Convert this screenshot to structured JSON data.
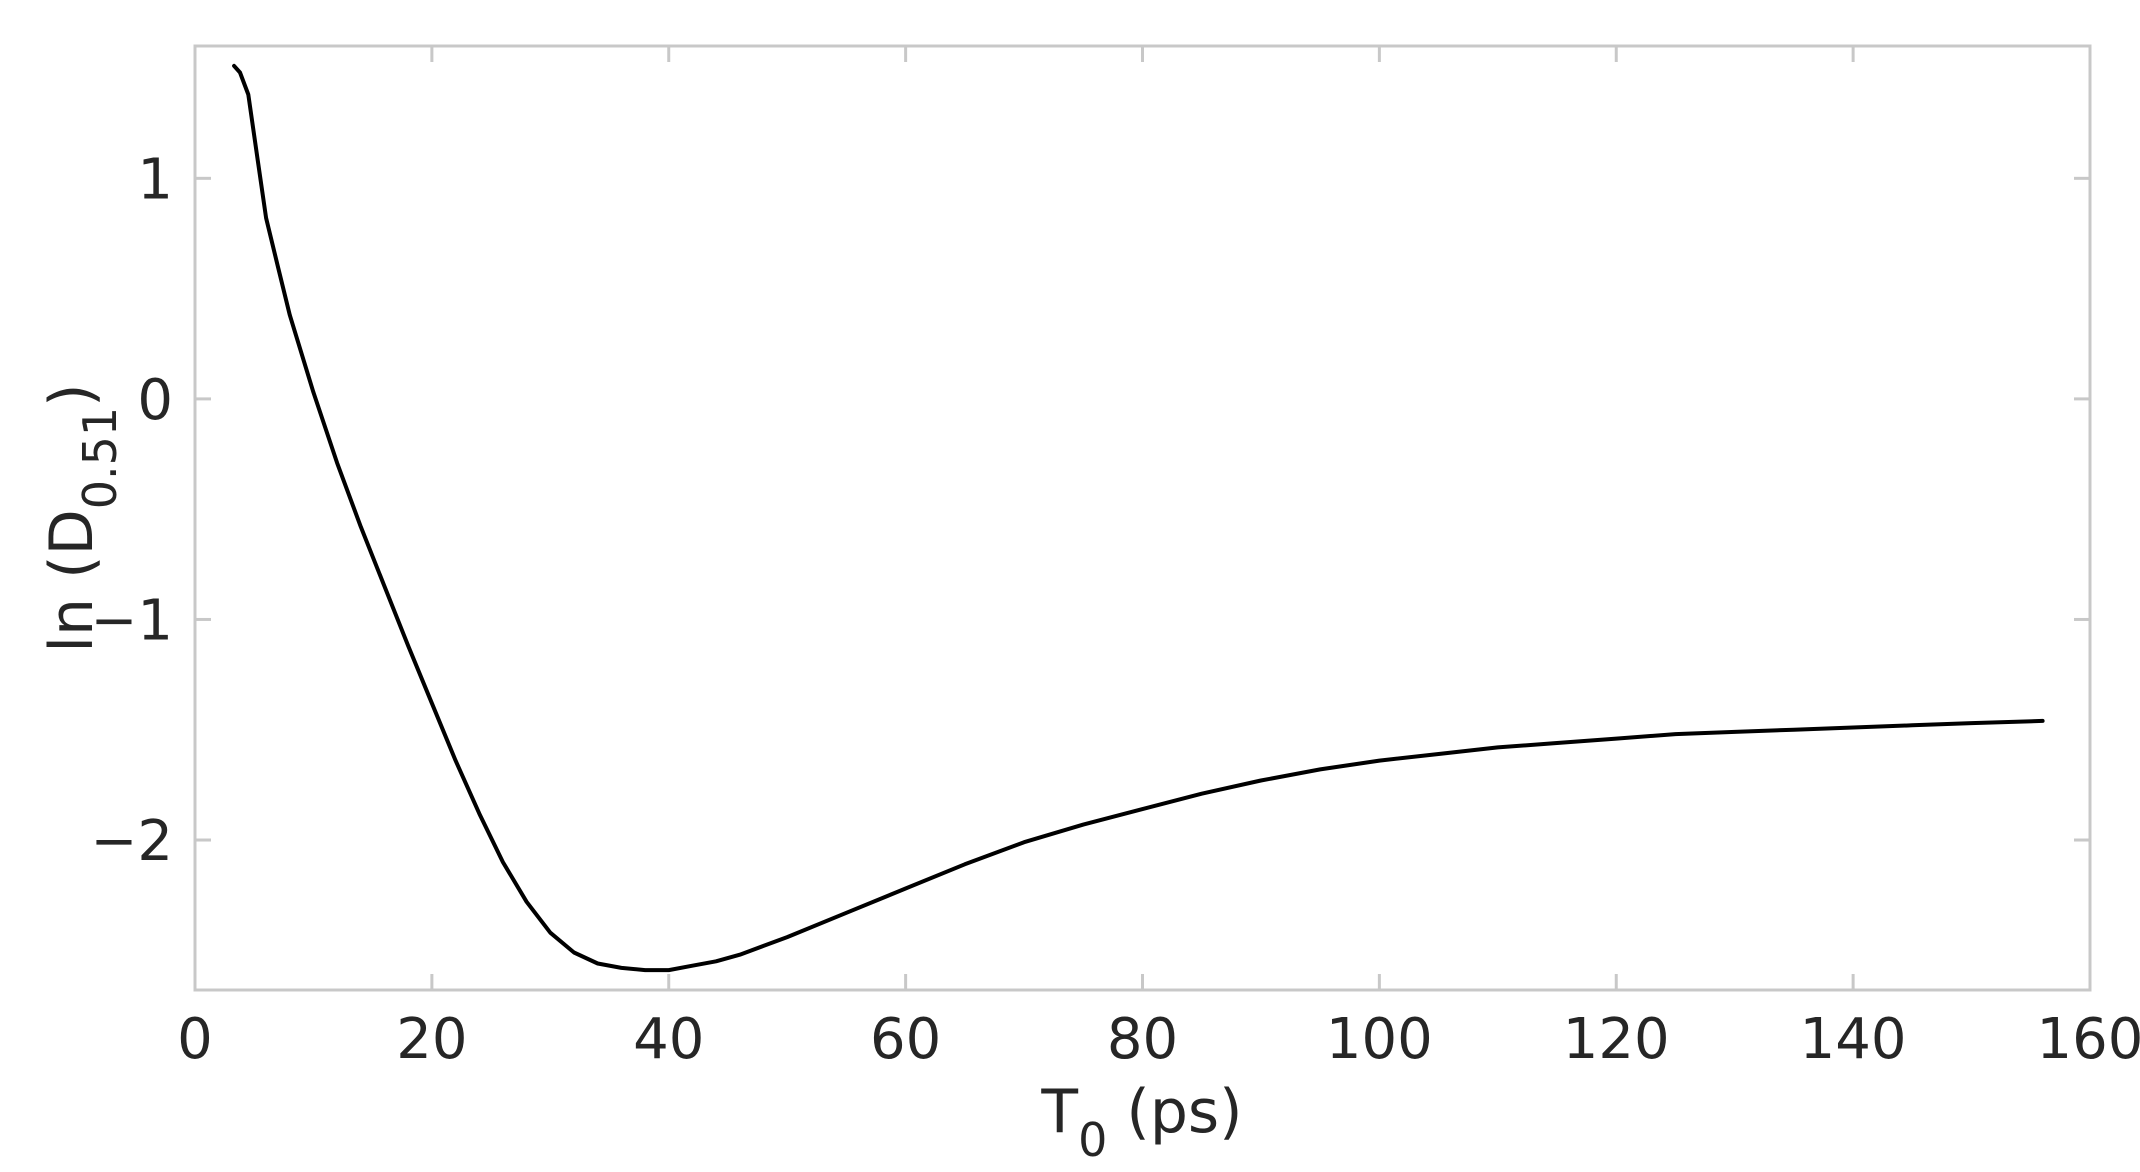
{
  "chart_data": {
    "type": "line",
    "title": "",
    "xlabel": {
      "base": "T",
      "subscript": "0",
      "suffix": " (ps)"
    },
    "ylabel": {
      "prefix": "ln (D",
      "subscript": "0.51",
      "suffix": ")"
    },
    "xlim": [
      0,
      160
    ],
    "ylim": [
      -2.68,
      1.6
    ],
    "xticks": [
      0,
      20,
      40,
      60,
      80,
      100,
      120,
      140,
      160
    ],
    "xtick_labels": [
      "0",
      "20",
      "40",
      "60",
      "80",
      "100",
      "120",
      "140",
      "160"
    ],
    "yticks": [
      1,
      0,
      -1,
      -2
    ],
    "ytick_labels": [
      "1",
      "0",
      "−1",
      "−2"
    ],
    "grid": false,
    "line_color": "#000000",
    "axis_color": "#c8c8c8",
    "series": [
      {
        "x": [
          3.3,
          3.8,
          4.5,
          5.3,
          6.0,
          7.0,
          8.0,
          10,
          12,
          14,
          16,
          18,
          20,
          22,
          24,
          26,
          28,
          30,
          32,
          34,
          36,
          38,
          40,
          42,
          44,
          46,
          48,
          50,
          55,
          60,
          65,
          70,
          75,
          80,
          85,
          90,
          95,
          100,
          105,
          110,
          115,
          120,
          125,
          130,
          135,
          140,
          145,
          150,
          156
        ],
        "y": [
          1.51,
          1.48,
          1.38,
          1.08,
          0.82,
          0.6,
          0.38,
          0.03,
          -0.29,
          -0.58,
          -0.85,
          -1.12,
          -1.38,
          -1.64,
          -1.88,
          -2.1,
          -2.28,
          -2.42,
          -2.51,
          -2.56,
          -2.58,
          -2.59,
          -2.59,
          -2.57,
          -2.55,
          -2.52,
          -2.48,
          -2.44,
          -2.33,
          -2.22,
          -2.11,
          -2.01,
          -1.93,
          -1.86,
          -1.79,
          -1.73,
          -1.68,
          -1.64,
          -1.61,
          -1.58,
          -1.56,
          -1.54,
          -1.52,
          -1.51,
          -1.5,
          -1.49,
          -1.48,
          -1.47,
          -1.46
        ]
      }
    ]
  }
}
